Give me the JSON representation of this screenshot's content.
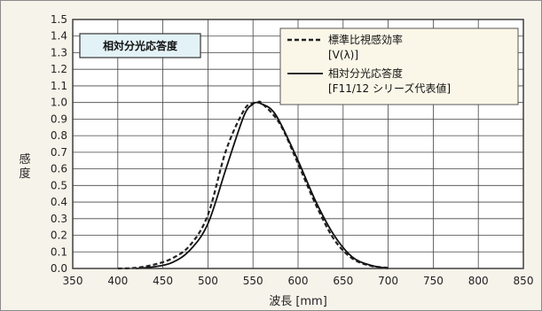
{
  "chart_data": {
    "type": "line",
    "title": "相対分光応答度",
    "xlabel": "波長 [mm]",
    "ylabel": "感度",
    "xlim": [
      350,
      850
    ],
    "ylim": [
      0.0,
      1.5
    ],
    "x_ticks": [
      "350",
      "400",
      "450",
      "500",
      "550",
      "600",
      "650",
      "700",
      "750",
      "800",
      "850"
    ],
    "y_ticks": [
      "0.0",
      "0.1",
      "0.2",
      "0.3",
      "0.4",
      "0.5",
      "0.6",
      "0.7",
      "0.8",
      "0.9",
      "1.0",
      "1.1",
      "1.2",
      "1.3",
      "1.4",
      "1.5"
    ],
    "grid": true,
    "legend_position": "top-right",
    "series": [
      {
        "name": "標準比視感効率 [V(λ)]",
        "label_lines": [
          "標準比視感効率",
          "[V(λ)]"
        ],
        "style": "dashed",
        "color": "#222222",
        "x": [
          400,
          420,
          440,
          460,
          480,
          500,
          520,
          540,
          550,
          555,
          560,
          580,
          600,
          620,
          640,
          660,
          680,
          700
        ],
        "y": [
          0.0,
          0.004,
          0.023,
          0.06,
          0.139,
          0.323,
          0.71,
          0.954,
          0.995,
          1.0,
          0.995,
          0.87,
          0.631,
          0.381,
          0.175,
          0.061,
          0.017,
          0.004
        ]
      },
      {
        "name": "相対分光応答度 [F11/12 シリーズ代表値]",
        "label_lines": [
          "相対分光応答度",
          "[F11/12 シリーズ代表値]"
        ],
        "style": "solid",
        "color": "#111111",
        "x": [
          420,
          440,
          460,
          480,
          500,
          520,
          540,
          550,
          555,
          560,
          570,
          580,
          600,
          620,
          640,
          660,
          680,
          700
        ],
        "y": [
          0.0,
          0.01,
          0.035,
          0.11,
          0.27,
          0.6,
          0.92,
          0.99,
          1.0,
          0.99,
          0.96,
          0.88,
          0.65,
          0.4,
          0.2,
          0.07,
          0.02,
          0.0
        ]
      }
    ]
  }
}
